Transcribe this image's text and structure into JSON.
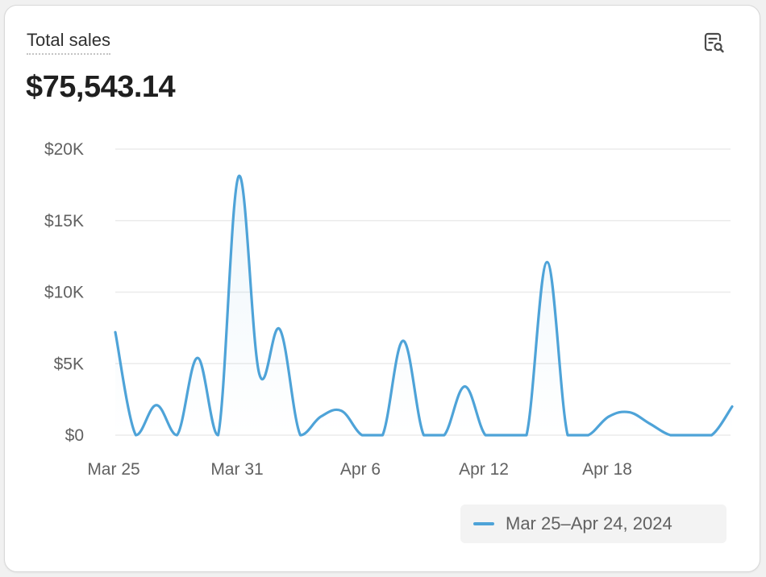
{
  "card": {
    "title": "Total sales",
    "value": "$75,543.14",
    "explore_icon": "search-chart-icon"
  },
  "colors": {
    "series_line": "#4ea3d8",
    "grid": "#ebebeb",
    "axis_text": "#616161"
  },
  "chart_data": {
    "type": "line",
    "title": "",
    "xlabel": "",
    "ylabel": "",
    "ylim": [
      0,
      20000
    ],
    "y_ticks": [
      "$0",
      "$5K",
      "$10K",
      "$15K",
      "$20K"
    ],
    "y_tick_values": [
      0,
      5000,
      10000,
      15000,
      20000
    ],
    "x_tick_labels": [
      "Mar 25",
      "Mar 31",
      "Apr 6",
      "Apr 12",
      "Apr 18"
    ],
    "x_tick_indices": [
      0,
      6,
      12,
      18,
      24
    ],
    "x": [
      "Mar 25",
      "Mar 26",
      "Mar 27",
      "Mar 28",
      "Mar 29",
      "Mar 30",
      "Mar 31",
      "Apr 1",
      "Apr 2",
      "Apr 3",
      "Apr 4",
      "Apr 5",
      "Apr 6",
      "Apr 7",
      "Apr 8",
      "Apr 9",
      "Apr 10",
      "Apr 11",
      "Apr 12",
      "Apr 13",
      "Apr 14",
      "Apr 15",
      "Apr 16",
      "Apr 17",
      "Apr 18",
      "Apr 19",
      "Apr 20",
      "Apr 21",
      "Apr 22",
      "Apr 23",
      "Apr 24"
    ],
    "series": [
      {
        "name": "Mar 25–Apr 24, 2024",
        "values": [
          7200,
          0,
          2100,
          0,
          5400,
          0,
          18100,
          4300,
          7400,
          0,
          1300,
          1700,
          0,
          0,
          6600,
          0,
          0,
          3400,
          0,
          0,
          0,
          12100,
          0,
          0,
          1300,
          1600,
          800,
          0,
          0,
          0,
          2000
        ]
      }
    ],
    "legend_position": "bottom-right",
    "grid": true
  }
}
